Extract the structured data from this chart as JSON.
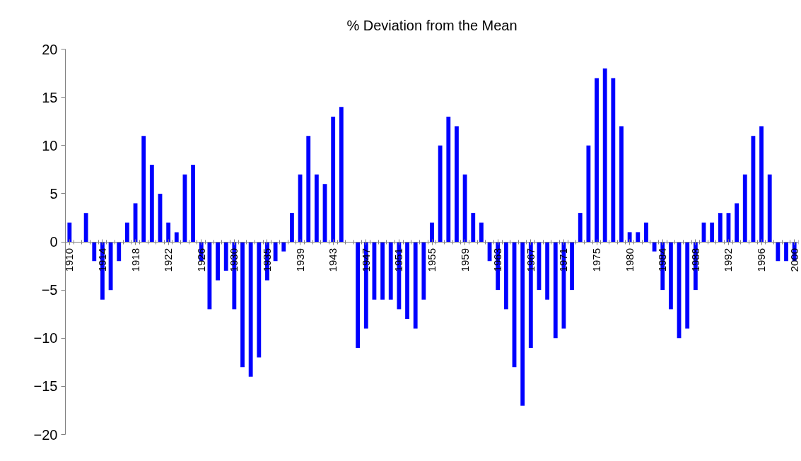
{
  "chart_data": {
    "type": "bar",
    "title": "% Deviation from the Mean",
    "categories": [
      "1910",
      null,
      null,
      null,
      "1914",
      null,
      null,
      null,
      "1918",
      null,
      null,
      null,
      "1922",
      null,
      null,
      null,
      "1926",
      null,
      null,
      null,
      "1930",
      null,
      null,
      null,
      "1935",
      null,
      null,
      null,
      "1939",
      null,
      null,
      null,
      "1943",
      null,
      null,
      null,
      "1947",
      null,
      null,
      null,
      "1951",
      null,
      null,
      null,
      "1955",
      null,
      null,
      null,
      "1959",
      null,
      null,
      null,
      "1963",
      null,
      null,
      null,
      "1967",
      null,
      null,
      null,
      "1971",
      null,
      null,
      null,
      "1975",
      null,
      null,
      null,
      "1980",
      null,
      null,
      null,
      "1984",
      null,
      null,
      null,
      "1988",
      null,
      null,
      null,
      "1992",
      null,
      null,
      null,
      "1996",
      null,
      null,
      null,
      "2000"
    ],
    "values": [
      2,
      0,
      3,
      -2,
      -6,
      -5,
      -2,
      2,
      4,
      11,
      8,
      5,
      2,
      1,
      7,
      8,
      -2,
      -7,
      -4,
      -3,
      -7,
      -13,
      -14,
      -12,
      -4,
      -2,
      -1,
      3,
      7,
      11,
      7,
      6,
      13,
      14,
      0,
      -11,
      -9,
      -6,
      -6,
      -6,
      -7,
      -8,
      -9,
      -6,
      2,
      10,
      13,
      12,
      7,
      3,
      2,
      -2,
      -5,
      -7,
      -13,
      -17,
      -11,
      -5,
      -6,
      -10,
      -9,
      -5,
      3,
      10,
      17,
      18,
      17,
      12,
      1,
      1,
      2,
      -1,
      -5,
      -7,
      -10,
      -9,
      -5,
      2,
      2,
      3,
      3,
      4,
      7,
      11,
      12,
      7,
      -2,
      -2,
      -2
    ],
    "color": "#0000ff",
    "ylim": [
      -20,
      20
    ],
    "yticks": [
      -20,
      -15,
      -10,
      -5,
      0,
      5,
      10,
      15,
      20
    ],
    "grid": false
  }
}
